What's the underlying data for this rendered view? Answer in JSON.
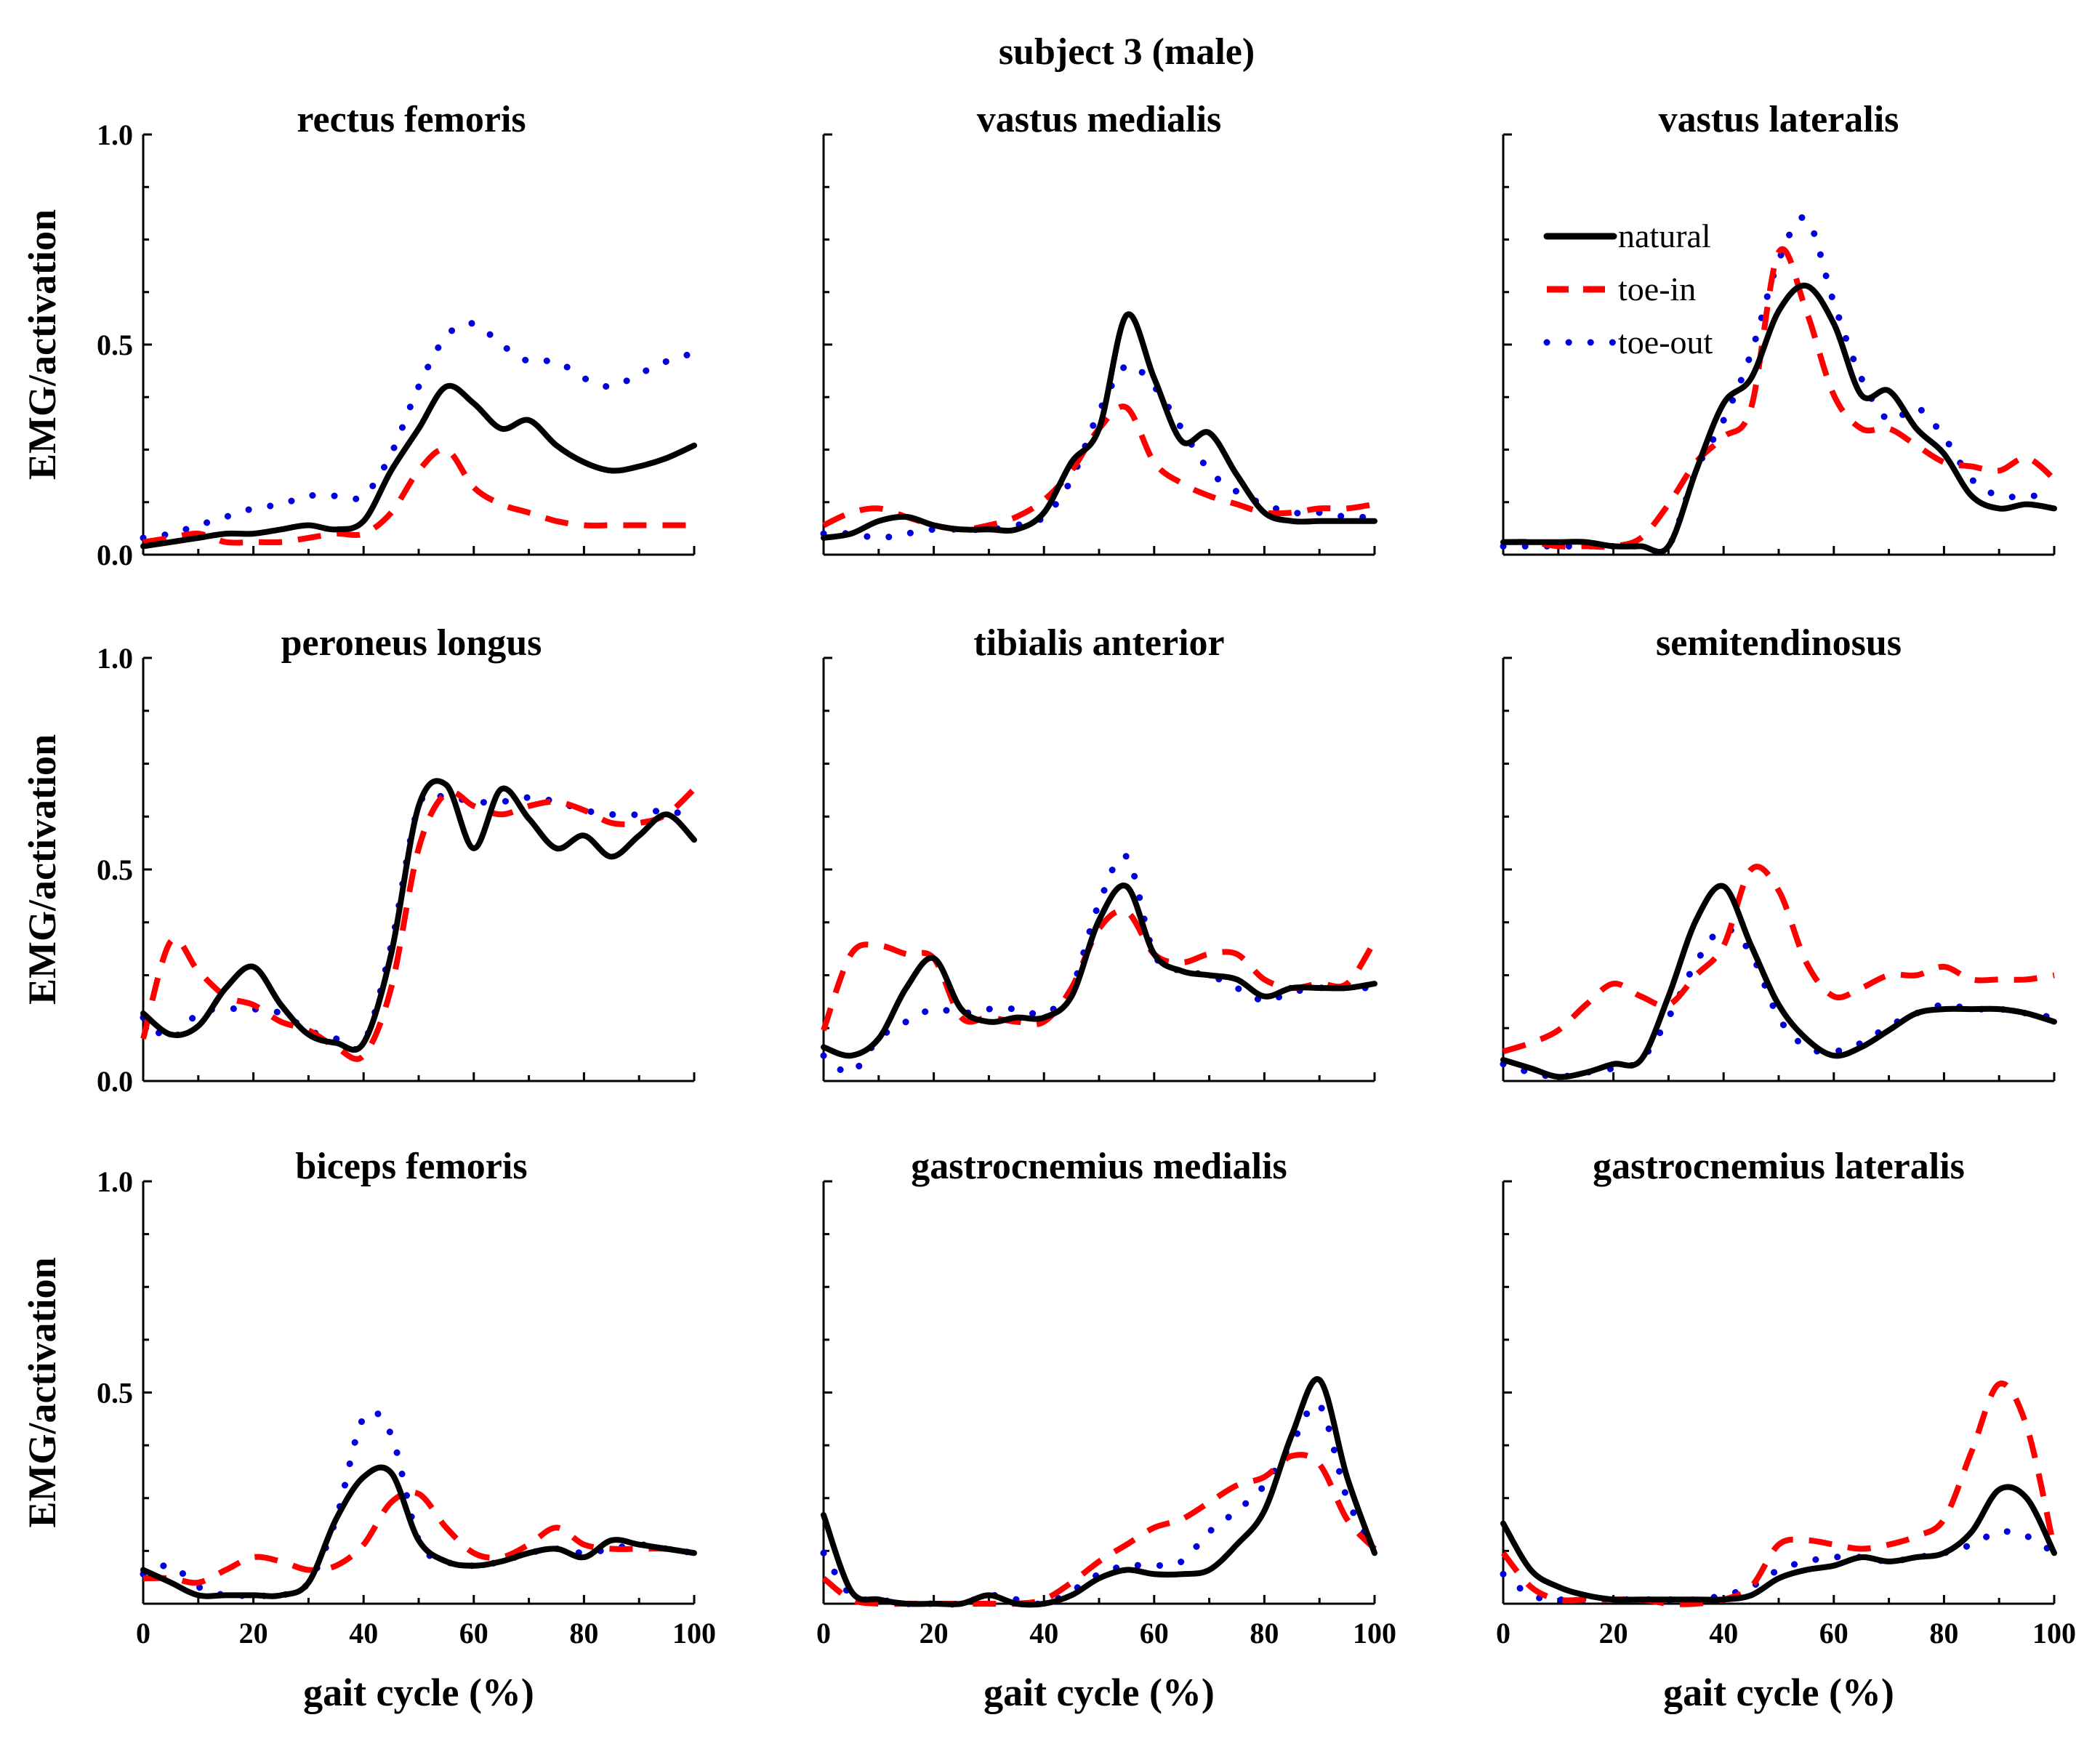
{
  "chart_data": {
    "type": "line",
    "title": "subject 3 (male)",
    "xlabel": "gait cycle (%)",
    "ylabel": "EMG/activation",
    "xlim": [
      0,
      100
    ],
    "ylim": [
      0,
      1.0
    ],
    "xticks": [
      0,
      20,
      40,
      60,
      80,
      100
    ],
    "yticks": [
      0.0,
      0.5,
      1.0
    ],
    "ytick_labels": [
      "0.0",
      "0.5",
      "1.0"
    ],
    "legend": {
      "position": "top-right panel (vastus lateralis)",
      "entries": [
        {
          "name": "natural",
          "color": "#000000",
          "style": "solid"
        },
        {
          "name": "toe-in",
          "color": "#ff0000",
          "style": "dashed"
        },
        {
          "name": "toe-out",
          "color": "#0000dd",
          "style": "dotted"
        }
      ]
    },
    "panels": [
      {
        "title": "rectus femoris",
        "x": [
          0,
          5,
          10,
          15,
          20,
          25,
          30,
          35,
          40,
          45,
          50,
          55,
          60,
          65,
          70,
          75,
          80,
          85,
          90,
          95,
          100
        ],
        "series": [
          {
            "name": "natural",
            "values": [
              0.02,
              0.03,
              0.04,
              0.05,
              0.05,
              0.06,
              0.07,
              0.06,
              0.08,
              0.2,
              0.3,
              0.4,
              0.36,
              0.3,
              0.32,
              0.26,
              0.22,
              0.2,
              0.21,
              0.23,
              0.26
            ]
          },
          {
            "name": "toe-in",
            "values": [
              0.03,
              0.04,
              0.05,
              0.03,
              0.03,
              0.03,
              0.04,
              0.05,
              0.05,
              0.1,
              0.2,
              0.25,
              0.16,
              0.12,
              0.1,
              0.08,
              0.07,
              0.07,
              0.07,
              0.07,
              0.07
            ]
          },
          {
            "name": "toe-out",
            "values": [
              0.04,
              0.05,
              0.07,
              0.09,
              0.11,
              0.12,
              0.14,
              0.14,
              0.14,
              0.24,
              0.4,
              0.52,
              0.55,
              0.5,
              0.46,
              0.46,
              0.42,
              0.4,
              0.43,
              0.46,
              0.48
            ]
          }
        ]
      },
      {
        "title": "vastus medialis",
        "x": [
          0,
          5,
          10,
          15,
          20,
          25,
          30,
          35,
          40,
          45,
          50,
          55,
          60,
          65,
          70,
          75,
          80,
          85,
          90,
          95,
          100
        ],
        "series": [
          {
            "name": "natural",
            "values": [
              0.04,
              0.05,
              0.08,
              0.09,
              0.07,
              0.06,
              0.06,
              0.06,
              0.1,
              0.22,
              0.3,
              0.57,
              0.42,
              0.27,
              0.29,
              0.19,
              0.1,
              0.08,
              0.08,
              0.08,
              0.08
            ]
          },
          {
            "name": "toe-in",
            "values": [
              0.07,
              0.1,
              0.11,
              0.09,
              0.07,
              0.06,
              0.07,
              0.09,
              0.13,
              0.2,
              0.3,
              0.35,
              0.22,
              0.17,
              0.14,
              0.12,
              0.1,
              0.1,
              0.11,
              0.11,
              0.12
            ]
          },
          {
            "name": "toe-out",
            "values": [
              0.05,
              0.05,
              0.04,
              0.05,
              0.06,
              0.06,
              0.06,
              0.07,
              0.09,
              0.18,
              0.34,
              0.45,
              0.4,
              0.3,
              0.2,
              0.15,
              0.12,
              0.1,
              0.1,
              0.09,
              0.09
            ]
          }
        ]
      },
      {
        "title": "vastus lateralis",
        "x": [
          0,
          5,
          10,
          15,
          20,
          25,
          30,
          35,
          40,
          45,
          50,
          55,
          60,
          65,
          70,
          75,
          80,
          85,
          90,
          95,
          100
        ],
        "series": [
          {
            "name": "natural",
            "values": [
              0.03,
              0.03,
              0.03,
              0.03,
              0.02,
              0.02,
              0.02,
              0.2,
              0.36,
              0.42,
              0.58,
              0.64,
              0.55,
              0.38,
              0.39,
              0.3,
              0.24,
              0.14,
              0.11,
              0.12,
              0.11
            ]
          },
          {
            "name": "toe-in",
            "values": [
              0.03,
              0.03,
              0.02,
              0.02,
              0.02,
              0.04,
              0.12,
              0.22,
              0.28,
              0.35,
              0.72,
              0.58,
              0.38,
              0.3,
              0.3,
              0.26,
              0.22,
              0.21,
              0.2,
              0.23,
              0.18
            ]
          },
          {
            "name": "toe-out",
            "values": [
              0.02,
              0.02,
              0.02,
              0.02,
              0.02,
              0.02,
              0.02,
              0.2,
              0.32,
              0.48,
              0.7,
              0.8,
              0.6,
              0.42,
              0.32,
              0.35,
              0.28,
              0.18,
              0.14,
              0.14,
              0.14
            ]
          }
        ]
      },
      {
        "title": "peroneus longus",
        "x": [
          0,
          5,
          10,
          15,
          20,
          25,
          30,
          35,
          40,
          45,
          50,
          55,
          60,
          65,
          70,
          75,
          80,
          85,
          90,
          95,
          100
        ],
        "series": [
          {
            "name": "natural",
            "values": [
              0.16,
              0.11,
              0.13,
              0.22,
              0.27,
              0.18,
              0.11,
              0.09,
              0.09,
              0.3,
              0.65,
              0.7,
              0.55,
              0.69,
              0.62,
              0.55,
              0.58,
              0.53,
              0.58,
              0.63,
              0.57
            ]
          },
          {
            "name": "toe-in",
            "values": [
              0.1,
              0.33,
              0.26,
              0.2,
              0.18,
              0.14,
              0.12,
              0.08,
              0.06,
              0.22,
              0.55,
              0.68,
              0.65,
              0.63,
              0.65,
              0.66,
              0.64,
              0.61,
              0.61,
              0.63,
              0.69
            ]
          },
          {
            "name": "toe-out",
            "values": [
              0.15,
              0.1,
              0.16,
              0.17,
              0.17,
              0.16,
              0.12,
              0.1,
              0.09,
              0.32,
              0.65,
              0.67,
              0.66,
              0.66,
              0.67,
              0.66,
              0.64,
              0.63,
              0.63,
              0.64,
              0.62
            ]
          }
        ]
      },
      {
        "title": "tibialis anterior",
        "x": [
          0,
          5,
          10,
          15,
          20,
          25,
          30,
          35,
          40,
          45,
          50,
          55,
          60,
          65,
          70,
          75,
          80,
          85,
          90,
          95,
          100
        ],
        "series": [
          {
            "name": "natural",
            "values": [
              0.08,
              0.06,
              0.1,
              0.22,
              0.29,
              0.17,
              0.14,
              0.15,
              0.15,
              0.2,
              0.38,
              0.46,
              0.3,
              0.26,
              0.25,
              0.24,
              0.2,
              0.22,
              0.22,
              0.22,
              0.23
            ]
          },
          {
            "name": "toe-in",
            "values": [
              0.12,
              0.3,
              0.32,
              0.3,
              0.29,
              0.15,
              0.15,
              0.14,
              0.14,
              0.22,
              0.36,
              0.4,
              0.3,
              0.28,
              0.3,
              0.3,
              0.24,
              0.22,
              0.23,
              0.23,
              0.33
            ]
          },
          {
            "name": "toe-out",
            "values": [
              0.06,
              0.02,
              0.1,
              0.14,
              0.17,
              0.16,
              0.17,
              0.17,
              0.16,
              0.22,
              0.42,
              0.53,
              0.3,
              0.26,
              0.25,
              0.22,
              0.19,
              0.21,
              0.22,
              0.22,
              0.22
            ]
          }
        ]
      },
      {
        "title": "semitendinosus",
        "x": [
          0,
          5,
          10,
          15,
          20,
          25,
          30,
          35,
          40,
          45,
          50,
          55,
          60,
          65,
          70,
          75,
          80,
          85,
          90,
          95,
          100
        ],
        "series": [
          {
            "name": "natural",
            "values": [
              0.05,
              0.03,
              0.01,
              0.02,
              0.04,
              0.05,
              0.2,
              0.38,
              0.46,
              0.32,
              0.18,
              0.1,
              0.06,
              0.08,
              0.12,
              0.16,
              0.17,
              0.17,
              0.17,
              0.16,
              0.14
            ]
          },
          {
            "name": "toe-in",
            "values": [
              0.07,
              0.09,
              0.12,
              0.18,
              0.23,
              0.2,
              0.18,
              0.25,
              0.32,
              0.5,
              0.45,
              0.28,
              0.2,
              0.22,
              0.25,
              0.25,
              0.27,
              0.24,
              0.24,
              0.24,
              0.25
            ]
          },
          {
            "name": "toe-out",
            "values": [
              0.04,
              0.02,
              0.01,
              0.02,
              0.03,
              0.05,
              0.15,
              0.28,
              0.36,
              0.3,
              0.15,
              0.08,
              0.07,
              0.09,
              0.13,
              0.16,
              0.18,
              0.17,
              0.17,
              0.16,
              0.15
            ]
          }
        ]
      },
      {
        "title": "biceps femoris",
        "x": [
          0,
          5,
          10,
          15,
          20,
          25,
          30,
          35,
          40,
          45,
          50,
          55,
          60,
          65,
          70,
          75,
          80,
          85,
          90,
          95,
          100
        ],
        "series": [
          {
            "name": "natural",
            "values": [
              0.08,
              0.05,
              0.02,
              0.02,
              0.02,
              0.02,
              0.05,
              0.2,
              0.3,
              0.31,
              0.15,
              0.1,
              0.09,
              0.1,
              0.12,
              0.13,
              0.11,
              0.15,
              0.14,
              0.13,
              0.12
            ]
          },
          {
            "name": "toe-in",
            "values": [
              0.06,
              0.06,
              0.05,
              0.08,
              0.11,
              0.1,
              0.08,
              0.09,
              0.14,
              0.24,
              0.26,
              0.18,
              0.12,
              0.11,
              0.14,
              0.18,
              0.14,
              0.13,
              0.13,
              0.13,
              0.12
            ]
          },
          {
            "name": "toe-out",
            "values": [
              0.07,
              0.09,
              0.04,
              0.02,
              0.02,
              0.02,
              0.05,
              0.2,
              0.44,
              0.4,
              0.15,
              0.1,
              0.09,
              0.1,
              0.12,
              0.13,
              0.12,
              0.13,
              0.14,
              0.13,
              0.12
            ]
          }
        ]
      },
      {
        "title": "gastrocnemius medialis",
        "x": [
          0,
          5,
          10,
          15,
          20,
          25,
          30,
          35,
          40,
          45,
          50,
          55,
          60,
          65,
          70,
          75,
          80,
          85,
          90,
          95,
          100
        ],
        "series": [
          {
            "name": "natural",
            "values": [
              0.21,
              0.03,
              0.01,
              0.0,
              0.0,
              0.0,
              0.02,
              0.0,
              0.0,
              0.02,
              0.06,
              0.08,
              0.07,
              0.07,
              0.08,
              0.14,
              0.22,
              0.4,
              0.53,
              0.3,
              0.12
            ]
          },
          {
            "name": "toe-in",
            "values": [
              0.06,
              0.01,
              0.0,
              0.0,
              0.0,
              0.0,
              0.0,
              0.0,
              0.01,
              0.05,
              0.1,
              0.14,
              0.18,
              0.2,
              0.24,
              0.28,
              0.3,
              0.35,
              0.33,
              0.2,
              0.13
            ]
          },
          {
            "name": "toe-out",
            "values": [
              0.12,
              0.02,
              0.01,
              0.0,
              0.0,
              0.0,
              0.02,
              0.01,
              0.0,
              0.03,
              0.07,
              0.09,
              0.09,
              0.1,
              0.17,
              0.22,
              0.28,
              0.38,
              0.47,
              0.25,
              0.13
            ]
          }
        ]
      },
      {
        "title": "gastrocnemius lateralis",
        "x": [
          0,
          5,
          10,
          15,
          20,
          25,
          30,
          35,
          40,
          45,
          50,
          55,
          60,
          65,
          70,
          75,
          80,
          85,
          90,
          95,
          100
        ],
        "series": [
          {
            "name": "natural",
            "values": [
              0.19,
              0.08,
              0.04,
              0.02,
              0.01,
              0.01,
              0.01,
              0.01,
              0.01,
              0.02,
              0.06,
              0.08,
              0.09,
              0.11,
              0.1,
              0.11,
              0.12,
              0.17,
              0.27,
              0.25,
              0.12
            ]
          },
          {
            "name": "toe-in",
            "values": [
              0.12,
              0.04,
              0.01,
              0.01,
              0.01,
              0.01,
              0.0,
              0.0,
              0.01,
              0.04,
              0.14,
              0.15,
              0.14,
              0.13,
              0.14,
              0.16,
              0.2,
              0.36,
              0.52,
              0.42,
              0.13
            ]
          },
          {
            "name": "toe-out",
            "values": [
              0.07,
              0.02,
              0.01,
              0.01,
              0.01,
              0.01,
              0.01,
              0.01,
              0.02,
              0.04,
              0.08,
              0.1,
              0.11,
              0.11,
              0.1,
              0.11,
              0.12,
              0.14,
              0.17,
              0.16,
              0.12
            ]
          }
        ]
      }
    ]
  }
}
